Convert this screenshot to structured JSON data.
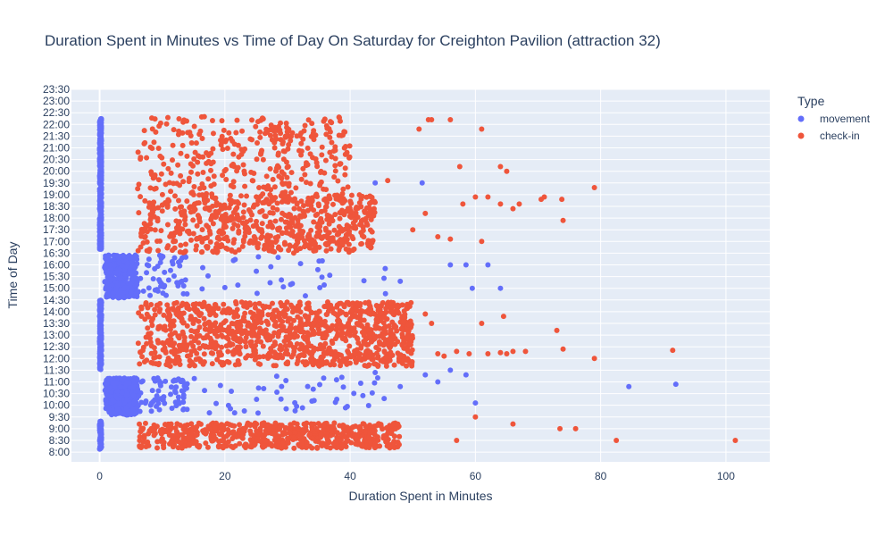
{
  "chart_data": {
    "type": "scatter",
    "title": "Duration Spent in Minutes vs Time of Day On Saturday for Creighton Pavilion (attraction 32)",
    "xlabel": "Duration Spent in Minutes",
    "ylabel": "Time of Day",
    "xlim": [
      -4.5,
      107
    ],
    "ylim": [
      "7:35",
      "23:30"
    ],
    "x_ticks": [
      0,
      20,
      40,
      60,
      80,
      100
    ],
    "y_ticks": [
      "8:00",
      "8:30",
      "9:00",
      "9:30",
      "10:00",
      "10:30",
      "11:00",
      "11:30",
      "12:00",
      "12:30",
      "13:00",
      "13:30",
      "14:00",
      "14:30",
      "15:00",
      "15:30",
      "16:00",
      "16:30",
      "17:00",
      "17:30",
      "18:00",
      "18:30",
      "19:00",
      "19:30",
      "20:00",
      "20:30",
      "21:00",
      "21:30",
      "22:00",
      "22:30",
      "23:00",
      "23:30"
    ],
    "grid": true,
    "legend": {
      "title": "Type",
      "placement": "top-right outside"
    },
    "series": [
      {
        "name": "movement",
        "color": "#636efa",
        "clusters": [
          {
            "x": [
              0,
              0.3
            ],
            "y": [
              "8:05",
              "9:20"
            ],
            "n": 90
          },
          {
            "x": [
              0,
              0.3
            ],
            "y": [
              "11:30",
              "14:30"
            ],
            "n": 220
          },
          {
            "x": [
              0,
              0.3
            ],
            "y": [
              "16:40",
              "22:15"
            ],
            "n": 420
          },
          {
            "x": [
              0.8,
              6
            ],
            "y": [
              "9:35",
              "11:10"
            ],
            "n": 420
          },
          {
            "x": [
              6,
              14
            ],
            "y": [
              "9:40",
              "11:10"
            ],
            "n": 70
          },
          {
            "x": [
              0.8,
              6
            ],
            "y": [
              "14:35",
              "16:25"
            ],
            "n": 330
          },
          {
            "x": [
              6,
              14
            ],
            "y": [
              "14:40",
              "16:25"
            ],
            "n": 50
          },
          {
            "x": [
              14,
              46
            ],
            "y": [
              "9:40",
              "11:15"
            ],
            "n": 45
          },
          {
            "x": [
              14,
              46
            ],
            "y": [
              "14:40",
              "16:25"
            ],
            "n": 30
          }
        ],
        "points": [
          [
            44,
            11.4
          ],
          [
            48,
            10.8
          ],
          [
            52,
            11.3
          ],
          [
            54,
            11.0
          ],
          [
            56,
            11.5
          ],
          [
            58.5,
            11.3
          ],
          [
            60,
            10.1
          ],
          [
            84.5,
            10.8
          ],
          [
            92,
            10.9
          ],
          [
            56,
            16.0
          ],
          [
            58.5,
            16.0
          ],
          [
            59.5,
            15.0
          ],
          [
            62,
            16.0
          ],
          [
            64,
            15.0
          ],
          [
            48,
            15.3
          ],
          [
            51.5,
            19.5
          ],
          [
            44,
            19.5
          ]
        ]
      },
      {
        "name": "check-in",
        "color": "#ef553b",
        "clusters": [
          {
            "x": [
              6,
              48
            ],
            "y": [
              "8:10",
              "9:15"
            ],
            "n": 650
          },
          {
            "x": [
              6,
              50
            ],
            "y": [
              "11:40",
              "14:25"
            ],
            "n": 1100
          },
          {
            "x": [
              6,
              44
            ],
            "y": [
              "16:30",
              "19:00"
            ],
            "n": 650
          },
          {
            "x": [
              6,
              40
            ],
            "y": [
              "19:00",
              "22:20"
            ],
            "n": 330
          }
        ],
        "points": [
          [
            101.5,
            8.5
          ],
          [
            82.5,
            8.5
          ],
          [
            76,
            9.0
          ],
          [
            73.5,
            9.0
          ],
          [
            66,
            9.2
          ],
          [
            60,
            9.5
          ],
          [
            57,
            8.5
          ],
          [
            91.5,
            12.35
          ],
          [
            79,
            12.0
          ],
          [
            74,
            12.4
          ],
          [
            73,
            13.2
          ],
          [
            68,
            12.3
          ],
          [
            66,
            12.3
          ],
          [
            65,
            12.2
          ],
          [
            64,
            12.25
          ],
          [
            62,
            12.2
          ],
          [
            61,
            13.5
          ],
          [
            59,
            12.2
          ],
          [
            57,
            12.3
          ],
          [
            55,
            12.1
          ],
          [
            54,
            12.2
          ],
          [
            52,
            13.9
          ],
          [
            53,
            13.5
          ],
          [
            64.5,
            13.8
          ],
          [
            74,
            17.9
          ],
          [
            73.8,
            18.8
          ],
          [
            71,
            18.9
          ],
          [
            70.5,
            18.8
          ],
          [
            67,
            18.6
          ],
          [
            66,
            18.4
          ],
          [
            64,
            18.6
          ],
          [
            62,
            18.9
          ],
          [
            61,
            17.0
          ],
          [
            60,
            18.9
          ],
          [
            58,
            18.6
          ],
          [
            56,
            17.1
          ],
          [
            54,
            17.2
          ],
          [
            52,
            18.2
          ],
          [
            50,
            17.5
          ],
          [
            79,
            19.3
          ],
          [
            65,
            20.0
          ],
          [
            64,
            20.2
          ],
          [
            61,
            21.8
          ],
          [
            57.5,
            20.2
          ],
          [
            56,
            22.2
          ],
          [
            53,
            22.2
          ],
          [
            52.5,
            22.2
          ],
          [
            51,
            21.8
          ],
          [
            46,
            19.6
          ]
        ]
      }
    ]
  }
}
